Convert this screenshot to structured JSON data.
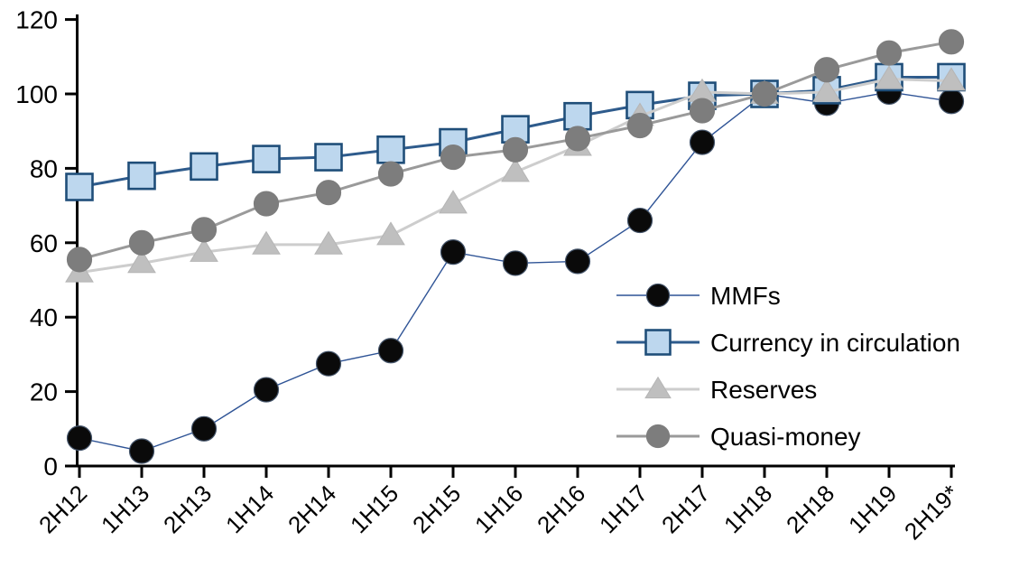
{
  "chart_data": {
    "type": "line",
    "title": "",
    "xlabel": "",
    "ylabel": "",
    "categories": [
      "2H12",
      "1H13",
      "2H13",
      "1H14",
      "2H14",
      "1H15",
      "2H15",
      "1H16",
      "2H16",
      "1H17",
      "2H17",
      "1H18",
      "2H18",
      "1H19",
      "2H19*"
    ],
    "series": [
      {
        "name": "MMFs",
        "marker": "circle",
        "values": [
          7.5,
          4,
          10,
          20.5,
          27.5,
          31,
          57.5,
          54.5,
          55,
          66,
          87,
          100,
          97.5,
          100.5,
          98
        ],
        "marker_fill": "#0a0a0a",
        "marker_stroke": "#44546a",
        "line_color": "#2f5496",
        "line_width": 1.4,
        "marker_size": 27
      },
      {
        "name": "Currency in circulation",
        "marker": "square",
        "values": [
          75,
          78,
          80.5,
          82.5,
          83,
          85,
          87,
          90.5,
          94,
          97,
          99.5,
          100,
          101,
          104.5,
          104.5
        ],
        "marker_fill": "#bdd7ee",
        "marker_stroke": "#1f4e79",
        "line_color": "#2e5b8c",
        "line_width": 3,
        "marker_size": 29
      },
      {
        "name": "Reserves",
        "marker": "triangle",
        "values": [
          52,
          54.5,
          57.5,
          59.5,
          59.5,
          62,
          70.5,
          79,
          86,
          94,
          100.5,
          100,
          100.5,
          104,
          103.5
        ],
        "marker_fill": "#bfbfbf",
        "marker_stroke": "#b5b5b5",
        "line_color": "#cdcdcd",
        "line_width": 3,
        "marker_size": 30
      },
      {
        "name": "Quasi-money",
        "marker": "circle",
        "values": [
          55.5,
          60,
          63.5,
          70.5,
          73.5,
          78.5,
          83,
          85,
          88,
          91.5,
          95.5,
          100,
          106.5,
          111,
          114
        ],
        "marker_fill": "#7d7d7d",
        "marker_stroke": "#7d7d7d",
        "line_color": "#9a9a9a",
        "line_width": 3,
        "marker_size": 27
      }
    ],
    "ylim": [
      0,
      120
    ],
    "yticks": [
      0,
      20,
      40,
      60,
      80,
      100,
      120
    ],
    "grid": false,
    "legend_position": "inside-right",
    "x_tick_label_rotation": -45
  },
  "legend": {
    "items": [
      "MMFs",
      "Currency in circulation",
      "Reserves",
      "Quasi-money"
    ]
  },
  "colors": {
    "axis": "#000000",
    "text": "#000000",
    "background": "#ffffff"
  }
}
